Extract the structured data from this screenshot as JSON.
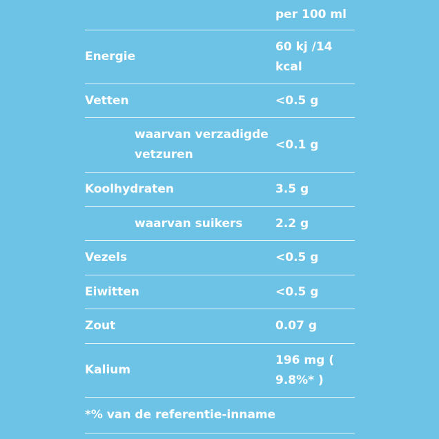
{
  "header": {
    "label": "",
    "value": "per 100 ml"
  },
  "rows": [
    {
      "label": "Energie",
      "value": "60 kj /14 kcal",
      "sub": false
    },
    {
      "label": "Vetten",
      "value": "<0.5 g",
      "sub": false
    },
    {
      "label": "waarvan verzadigde vetzuren",
      "value": "<0.1 g",
      "sub": true
    },
    {
      "label": "Koolhydraten",
      "value": "3.5 g",
      "sub": false
    },
    {
      "label": "waarvan suikers",
      "value": "2.2 g",
      "sub": true
    },
    {
      "label": "Vezels",
      "value": "<0.5 g",
      "sub": false
    },
    {
      "label": "Eiwitten",
      "value": "<0.5 g",
      "sub": false
    },
    {
      "label": "Zout",
      "value": "0.07 g",
      "sub": false
    },
    {
      "label": "Kalium",
      "value": "196 mg ( 9.8%* )",
      "sub": false
    }
  ],
  "footnote": "*% van de referentie-inname"
}
